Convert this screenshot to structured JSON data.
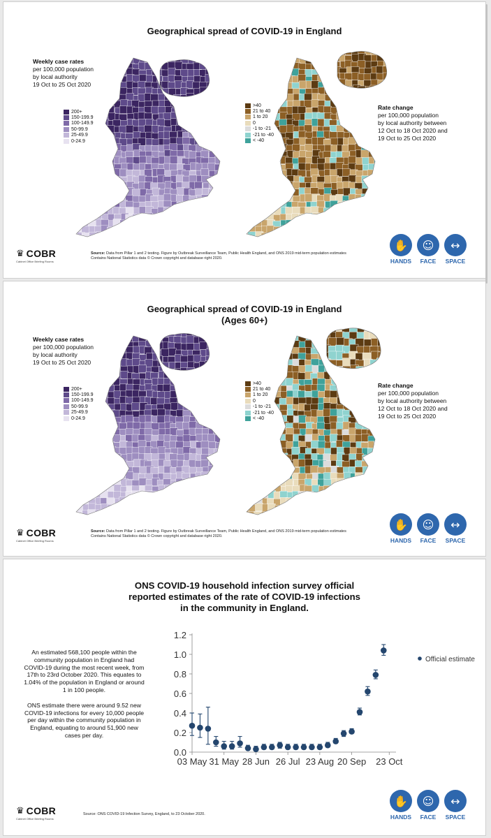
{
  "colors": {
    "purple_scale": [
      "#3b2561",
      "#5e4a8a",
      "#7f6aa8",
      "#9e8ec0",
      "#c2b7d9",
      "#e7e2f0"
    ],
    "change_scale": [
      "#5c3b12",
      "#8c5f25",
      "#c9a56b",
      "#e9dcbc",
      "#dcdcdc",
      "#8fd3cf",
      "#3fa29b",
      "#1f5e59"
    ],
    "accent_blue": "#2e67ad",
    "point_color": "#24466e"
  },
  "slide1": {
    "title": "Geographical spread of COVID-19 in England",
    "left_legend": {
      "heading": "Weekly case rates",
      "lines": [
        "per 100,000 population",
        "by local authority",
        "19 Oct to 25 Oct 2020"
      ],
      "bins": [
        "200+",
        "150-199.9",
        "100-149.9",
        "50-99.9",
        "25-49.9",
        "0-24.9"
      ]
    },
    "right_legend": {
      "heading": "Rate change",
      "lines": [
        "per 100,000 population",
        "by local authority between",
        "12 Oct to 18 Oct 2020 and",
        "19 Oct to 25 Oct 2020"
      ],
      "bins": [
        ">40",
        "21 to 40",
        "1 to 20",
        "0",
        "-1 to -21",
        "-21 to -40",
        "< -40"
      ]
    },
    "source_label": "Source:",
    "source": " Data from Pillar 1 and 2 testing. Figure by Outbreak Surveillance Team, Public Health England, and ONS 2019 mid-term population estimates",
    "source2": "Contains National Statistics data © Crown copyright and database right 2020."
  },
  "slide2": {
    "title": "Geographical spread of COVID-19 in England",
    "subtitle": "(Ages 60+)",
    "left_legend": {
      "heading": "Weekly case rates",
      "lines": [
        "per 100,000 population",
        "by local authority",
        "19 Oct to 25 Oct 2020"
      ],
      "bins": [
        "200+",
        "150-199.9",
        "100-149.9",
        "50-99.9",
        "25-49.9",
        "0-24.9"
      ]
    },
    "right_legend": {
      "heading": "Rate change",
      "lines": [
        "per 100,000 population",
        "by local authority between",
        "12 Oct to 18 Oct 2020 and",
        "19 Oct to 25 Oct 2020"
      ],
      "bins": [
        ">40",
        "21 to 40",
        "1 to 20",
        "0",
        "-1 to -21",
        "-21 to -40",
        "< -40"
      ]
    },
    "source_label": "Source:",
    "source": " Data from Pillar 1 and 2 testing. Figure by Outbreak Surveillance Team, Public Health England, and ONS 2019 mid-term population estimates",
    "source2": "Contains National Statistics data © Crown copyright and database right 2020."
  },
  "slide3": {
    "title_lines": [
      "ONS COVID-19 household infection survey official",
      "reported estimates of the rate of COVID-19 infections",
      "in the community in England."
    ],
    "para1": "An estimated 568,100 people within the community population in England had COVID-19 during the most recent week, from 17th to 23rd October 2020. This equates to 1.04% of the population in England or around 1 in 100 people.",
    "para2": "ONS estimate there were around 9.52 new COVID-19 infections for every 10,000 people per day within the community population in England, equating to around 51,900 new cases per day.",
    "source": "Source: ONS COVID-19 Infection Survey, England, to 23 October 2020."
  },
  "branding": {
    "cobr": "COBR",
    "cobr_sub": "Cabinet Office Briefing Rooms",
    "hands": "HANDS",
    "face": "FACE",
    "space": "SPACE"
  },
  "chart_data": {
    "type": "scatter",
    "title": "",
    "xlabel": "",
    "ylabel": "",
    "ylim": [
      0,
      1.2
    ],
    "yticks": [
      "0.0",
      "0.2",
      "0.4",
      "0.6",
      "0.8",
      "1.0",
      "1.2"
    ],
    "xticks": [
      {
        "label": "03 May",
        "pos": 0
      },
      {
        "label": "31 May",
        "pos": 4
      },
      {
        "label": "28 Jun",
        "pos": 8
      },
      {
        "label": "26 Jul",
        "pos": 12
      },
      {
        "label": "23 Aug",
        "pos": 16
      },
      {
        "label": "20 Sep",
        "pos": 20
      },
      {
        "label": "23 Oct",
        "pos": 24.7
      }
    ],
    "legend": "Official estimate",
    "legend_position": "top-right",
    "series": [
      {
        "name": "Official estimate",
        "points": [
          {
            "x": 0,
            "y": 0.27,
            "lo": 0.17,
            "hi": 0.4
          },
          {
            "x": 1,
            "y": 0.25,
            "lo": 0.15,
            "hi": 0.39
          },
          {
            "x": 2,
            "y": 0.24,
            "lo": 0.08,
            "hi": 0.46
          },
          {
            "x": 3,
            "y": 0.1,
            "lo": 0.06,
            "hi": 0.16
          },
          {
            "x": 4,
            "y": 0.06,
            "lo": 0.03,
            "hi": 0.11
          },
          {
            "x": 5,
            "y": 0.06,
            "lo": 0.03,
            "hi": 0.11
          },
          {
            "x": 6,
            "y": 0.09,
            "lo": 0.05,
            "hi": 0.16
          },
          {
            "x": 7,
            "y": 0.04,
            "lo": 0.02,
            "hi": 0.07
          },
          {
            "x": 8,
            "y": 0.03,
            "lo": 0.02,
            "hi": 0.06
          },
          {
            "x": 9,
            "y": 0.05,
            "lo": 0.03,
            "hi": 0.08
          },
          {
            "x": 10,
            "y": 0.05,
            "lo": 0.03,
            "hi": 0.08
          },
          {
            "x": 11,
            "y": 0.07,
            "lo": 0.04,
            "hi": 0.1
          },
          {
            "x": 12,
            "y": 0.05,
            "lo": 0.03,
            "hi": 0.08
          },
          {
            "x": 13,
            "y": 0.05,
            "lo": 0.03,
            "hi": 0.08
          },
          {
            "x": 14,
            "y": 0.05,
            "lo": 0.03,
            "hi": 0.08
          },
          {
            "x": 15,
            "y": 0.05,
            "lo": 0.03,
            "hi": 0.08
          },
          {
            "x": 16,
            "y": 0.05,
            "lo": 0.03,
            "hi": 0.08
          },
          {
            "x": 17,
            "y": 0.07,
            "lo": 0.05,
            "hi": 0.1
          },
          {
            "x": 18,
            "y": 0.11,
            "lo": 0.09,
            "hi": 0.14
          },
          {
            "x": 19,
            "y": 0.19,
            "lo": 0.16,
            "hi": 0.22
          },
          {
            "x": 20,
            "y": 0.21,
            "lo": 0.19,
            "hi": 0.24
          },
          {
            "x": 21,
            "y": 0.41,
            "lo": 0.38,
            "hi": 0.45
          },
          {
            "x": 22,
            "y": 0.62,
            "lo": 0.58,
            "hi": 0.67
          },
          {
            "x": 23,
            "y": 0.79,
            "lo": 0.75,
            "hi": 0.84
          },
          {
            "x": 24,
            "y": 1.04,
            "lo": 0.99,
            "hi": 1.1
          }
        ]
      }
    ]
  }
}
